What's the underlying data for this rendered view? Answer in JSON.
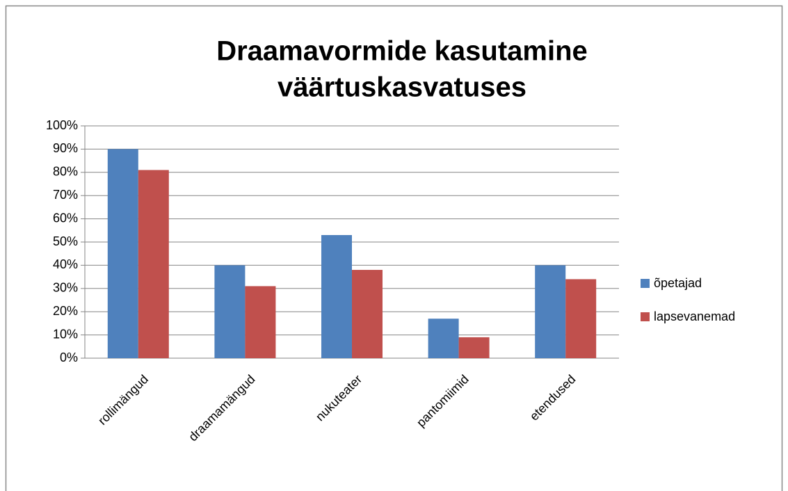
{
  "chart_data": {
    "type": "bar",
    "title": [
      "Draamavormide kasutamine",
      "väärtuskasvatuses"
    ],
    "categories": [
      "rollimängud",
      "draamamängud",
      "nukuteater",
      "pantomiimid",
      "etendused"
    ],
    "series": [
      {
        "name": "õpetajad",
        "color": "#4f81bd",
        "values": [
          90,
          40,
          53,
          17,
          40
        ]
      },
      {
        "name": "lapsevanemad",
        "color": "#c0504d",
        "values": [
          81,
          31,
          38,
          9,
          34
        ]
      }
    ],
    "ylim": [
      0,
      100
    ],
    "yticks": [
      {
        "value": 0,
        "label": "0%"
      },
      {
        "value": 10,
        "label": "10%"
      },
      {
        "value": 20,
        "label": "20%"
      },
      {
        "value": 30,
        "label": "30%"
      },
      {
        "value": 40,
        "label": "40%"
      },
      {
        "value": 50,
        "label": "50%"
      },
      {
        "value": 60,
        "label": "60%"
      },
      {
        "value": 70,
        "label": "70%"
      },
      {
        "value": 80,
        "label": "80%"
      },
      {
        "value": 90,
        "label": "90%"
      },
      {
        "value": 100,
        "label": "100%"
      }
    ],
    "grid": true,
    "legend": "right"
  }
}
